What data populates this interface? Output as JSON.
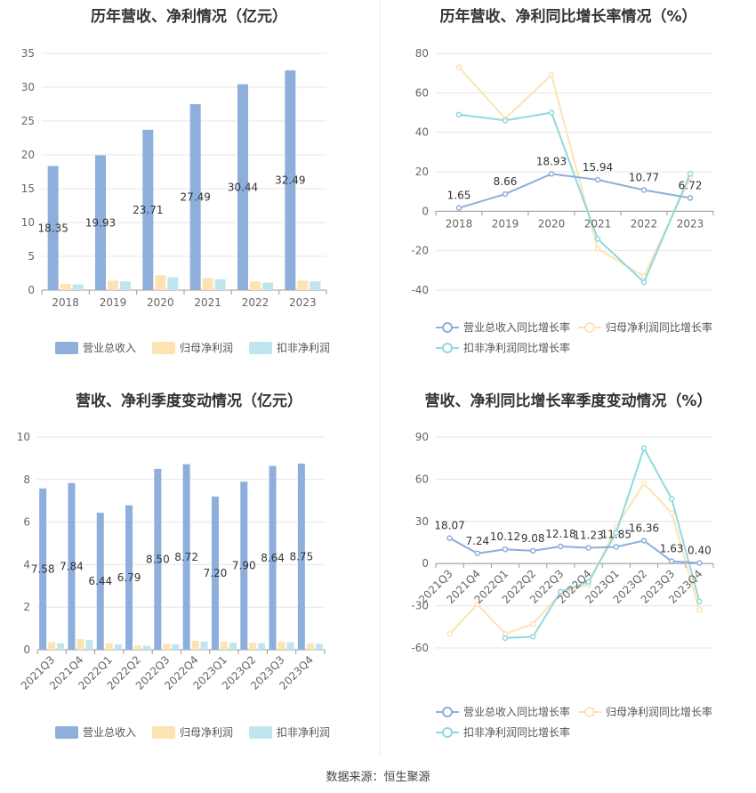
{
  "source": "数据来源：恒生聚源",
  "colors": {
    "revenue": "#8eaedc",
    "parent_np": "#fde3b3",
    "deducted_np": "#bfe6ec",
    "revenue_line": "#8eaedc",
    "parent_line": "#fde3b3",
    "deducted_line": "#8fd9de"
  },
  "chart_data": [
    {
      "type": "bar",
      "title": "历年营收、净利情况（亿元）",
      "categories": [
        "2018",
        "2019",
        "2020",
        "2021",
        "2022",
        "2023"
      ],
      "ylim": [
        0,
        35
      ],
      "yticks": [
        0,
        5,
        10,
        15,
        20,
        25,
        30,
        35
      ],
      "series": [
        {
          "name": "营业总收入",
          "values": [
            18.35,
            19.93,
            23.71,
            27.49,
            30.44,
            32.49
          ],
          "labels": [
            "18.35",
            "19.93",
            "23.71",
            "27.49",
            "30.44",
            "32.49"
          ]
        },
        {
          "name": "归母净利润",
          "values": [
            0.9,
            1.4,
            2.2,
            1.8,
            1.3,
            1.4
          ]
        },
        {
          "name": "扣非净利润",
          "values": [
            0.85,
            1.3,
            1.9,
            1.6,
            1.1,
            1.3
          ]
        }
      ],
      "legend": "bottom"
    },
    {
      "type": "line",
      "title": "历年营收、净利同比增长率情况（%）",
      "categories": [
        "2018",
        "2019",
        "2020",
        "2021",
        "2022",
        "2023"
      ],
      "ylim": [
        -40,
        80
      ],
      "yticks": [
        -40,
        -20,
        0,
        20,
        40,
        60,
        80
      ],
      "series": [
        {
          "name": "营业总收入同比增长率",
          "values": [
            1.65,
            8.66,
            18.93,
            15.94,
            10.77,
            6.72
          ],
          "labels": [
            "1.65",
            "8.66",
            "18.93",
            "15.94",
            "10.77",
            "6.72"
          ]
        },
        {
          "name": "归母净利润同比增长率",
          "values": [
            73,
            47,
            69,
            -19,
            -33,
            17
          ]
        },
        {
          "name": "扣非净利润同比增长率",
          "values": [
            49,
            46,
            50,
            -14,
            -36,
            19
          ]
        }
      ],
      "legend": "bottom"
    },
    {
      "type": "bar",
      "title": "营收、净利季度变动情况（亿元）",
      "categories": [
        "2021Q3",
        "2021Q4",
        "2022Q1",
        "2022Q2",
        "2022Q3",
        "2022Q4",
        "2023Q1",
        "2023Q2",
        "2023Q3",
        "2023Q4"
      ],
      "ylim": [
        0,
        10
      ],
      "yticks": [
        0,
        2,
        4,
        6,
        8,
        10
      ],
      "series": [
        {
          "name": "营业总收入",
          "values": [
            7.58,
            7.84,
            6.44,
            6.79,
            8.5,
            8.72,
            7.2,
            7.9,
            8.64,
            8.75
          ],
          "labels": [
            "7.58",
            "7.84",
            "6.44",
            "6.79",
            "8.50",
            "8.72",
            "7.20",
            "7.90",
            "8.64",
            "8.75"
          ]
        },
        {
          "name": "归母净利润",
          "values": [
            0.35,
            0.5,
            0.3,
            0.2,
            0.28,
            0.42,
            0.38,
            0.32,
            0.38,
            0.3
          ]
        },
        {
          "name": "扣非净利润",
          "values": [
            0.3,
            0.45,
            0.25,
            0.18,
            0.25,
            0.38,
            0.33,
            0.3,
            0.35,
            0.28
          ]
        }
      ],
      "legend": "bottom"
    },
    {
      "type": "line",
      "title": "营收、净利同比增长率季度变动情况（%）",
      "categories": [
        "2021Q3",
        "2021Q4",
        "2022Q1",
        "2022Q2",
        "2022Q3",
        "2022Q4",
        "2023Q1",
        "2023Q2",
        "2023Q3",
        "2023Q4"
      ],
      "ylim": [
        -60,
        90
      ],
      "yticks": [
        -60,
        -30,
        0,
        30,
        60,
        90
      ],
      "series": [
        {
          "name": "营业总收入同比增长率",
          "values": [
            18.07,
            7.24,
            10.12,
            9.08,
            12.18,
            11.23,
            11.85,
            16.36,
            1.63,
            0.4
          ],
          "labels": [
            "18.07",
            "7.24",
            "10.12",
            "9.08",
            "12.18",
            "11.23",
            "11.85",
            "16.36",
            "1.63",
            "0.40"
          ]
        },
        {
          "name": "归母净利润同比增长率",
          "values": [
            -50,
            -29,
            -50,
            -43,
            -21,
            -15,
            26,
            57,
            36,
            -33
          ]
        },
        {
          "name": "扣非净利润同比增长率",
          "values": [
            null,
            null,
            -53,
            -52,
            -20,
            -13,
            22,
            82,
            46,
            -27
          ]
        }
      ],
      "legend": "bottom"
    }
  ]
}
